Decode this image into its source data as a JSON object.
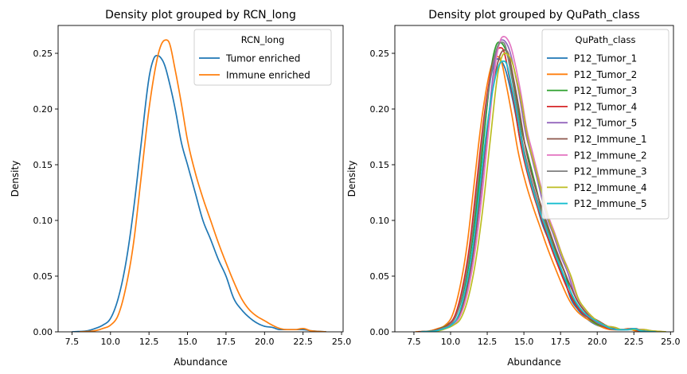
{
  "chart_data": [
    {
      "type": "line",
      "subtype": "kde",
      "title": "Density plot grouped by RCN_long",
      "xlabel": "Abundance",
      "ylabel": "Density",
      "xlim": [
        6.6,
        25.1
      ],
      "ylim": [
        0,
        0.275
      ],
      "xticks": [
        7.5,
        10.0,
        12.5,
        15.0,
        17.5,
        20.0,
        22.5,
        25.0
      ],
      "xtick_labels": [
        "7.5",
        "10.0",
        "12.5",
        "15.0",
        "17.5",
        "20.0",
        "22.5",
        "25.0"
      ],
      "yticks": [
        0,
        0.05,
        0.1,
        0.15,
        0.2,
        0.25
      ],
      "ytick_labels": [
        "0.00",
        "0.05",
        "0.10",
        "0.15",
        "0.20",
        "0.25"
      ],
      "legend": {
        "title": "RCN_long",
        "position": "top-right"
      },
      "series": [
        {
          "name": "Tumor enriched",
          "color": "#1f77b4",
          "x": [
            7.5,
            8.5,
            9.0,
            9.5,
            10.0,
            10.5,
            11.0,
            11.5,
            12.0,
            12.5,
            12.8,
            13.0,
            13.2,
            13.5,
            13.8,
            14.2,
            14.6,
            15.0,
            15.5,
            16.0,
            16.5,
            17.0,
            17.5,
            18.0,
            18.5,
            19.0,
            19.5,
            20.0,
            20.5,
            21.0,
            21.5,
            22.0,
            22.5,
            23.0,
            24.0
          ],
          "values": [
            0.0,
            0.001,
            0.003,
            0.006,
            0.012,
            0.03,
            0.062,
            0.11,
            0.17,
            0.228,
            0.245,
            0.248,
            0.247,
            0.24,
            0.225,
            0.2,
            0.17,
            0.15,
            0.125,
            0.1,
            0.083,
            0.065,
            0.05,
            0.03,
            0.02,
            0.013,
            0.008,
            0.005,
            0.004,
            0.002,
            0.002,
            0.002,
            0.002,
            0.001,
            0.0
          ]
        },
        {
          "name": "Immune enriched",
          "color": "#ff7f0e",
          "x": [
            8.0,
            9.0,
            9.5,
            10.0,
            10.5,
            11.0,
            11.5,
            12.0,
            12.5,
            13.0,
            13.3,
            13.6,
            13.8,
            14.2,
            14.6,
            15.0,
            15.5,
            16.0,
            16.5,
            17.0,
            17.5,
            18.0,
            18.5,
            19.0,
            19.5,
            20.0,
            20.5,
            21.0,
            21.5,
            22.0,
            22.5,
            23.0,
            24.0
          ],
          "values": [
            0.0,
            0.001,
            0.003,
            0.006,
            0.015,
            0.04,
            0.08,
            0.14,
            0.2,
            0.243,
            0.258,
            0.262,
            0.26,
            0.235,
            0.205,
            0.172,
            0.143,
            0.12,
            0.1,
            0.08,
            0.062,
            0.045,
            0.03,
            0.02,
            0.014,
            0.01,
            0.006,
            0.003,
            0.002,
            0.002,
            0.003,
            0.001,
            0.0
          ]
        }
      ]
    },
    {
      "type": "line",
      "subtype": "kde",
      "title": "Density plot grouped by QuPath_class",
      "xlabel": "Abundance",
      "ylabel": "Density",
      "xlim": [
        6.2,
        25.2
      ],
      "ylim": [
        0,
        0.275
      ],
      "xticks": [
        7.5,
        10.0,
        12.5,
        15.0,
        17.5,
        20.0,
        22.5,
        25.0
      ],
      "xtick_labels": [
        "7.5",
        "10.0",
        "12.5",
        "15.0",
        "17.5",
        "20.0",
        "22.5",
        "25.0"
      ],
      "yticks": [
        0,
        0.05,
        0.1,
        0.15,
        0.2,
        0.25
      ],
      "ytick_labels": [
        "0.00",
        "0.05",
        "0.10",
        "0.15",
        "0.20",
        "0.25"
      ],
      "legend": {
        "title": "QuPath_class",
        "position": "top-right"
      },
      "series": [
        {
          "name": "P12_Tumor_1",
          "color": "#1f77b4",
          "peak_x": 13.2,
          "peak_y": 0.245
        },
        {
          "name": "P12_Tumor_2",
          "color": "#ff7f0e",
          "peak_x": 13.2,
          "peak_y": 0.247
        },
        {
          "name": "P12_Tumor_3",
          "color": "#2ca02c",
          "peak_x": 13.3,
          "peak_y": 0.26
        },
        {
          "name": "P12_Tumor_4",
          "color": "#d62728",
          "peak_x": 13.4,
          "peak_y": 0.255
        },
        {
          "name": "P12_Tumor_5",
          "color": "#9467bd",
          "peak_x": 13.5,
          "peak_y": 0.262
        },
        {
          "name": "P12_Immune_1",
          "color": "#8c564b",
          "peak_x": 13.7,
          "peak_y": 0.253
        },
        {
          "name": "P12_Immune_2",
          "color": "#e377c2",
          "peak_x": 13.6,
          "peak_y": 0.265
        },
        {
          "name": "P12_Immune_3",
          "color": "#7f7f7f",
          "peak_x": 13.5,
          "peak_y": 0.26
        },
        {
          "name": "P12_Immune_4",
          "color": "#bcbd22",
          "peak_x": 13.7,
          "peak_y": 0.25
        },
        {
          "name": "P12_Immune_5",
          "color": "#17becf",
          "peak_x": 13.6,
          "peak_y": 0.243
        }
      ]
    }
  ]
}
